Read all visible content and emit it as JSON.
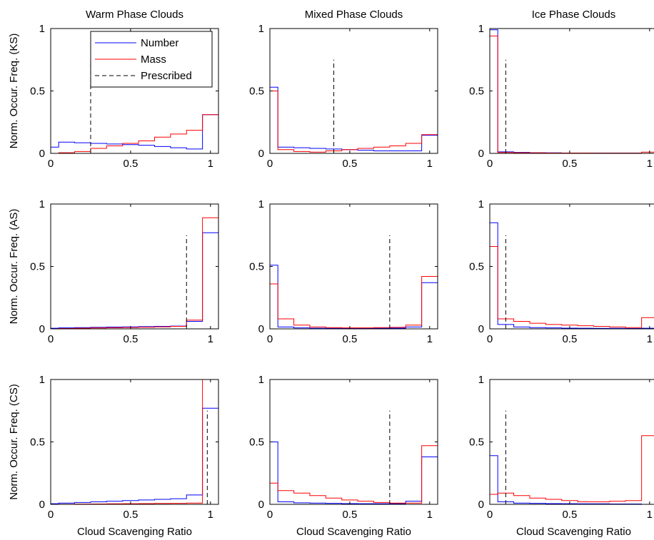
{
  "colors": {
    "number": "#0000ff",
    "mass": "#ff0000",
    "prescribed": "#000000",
    "axes": "#000000"
  },
  "chart_data": {
    "type": "line",
    "style": "stairs histogram",
    "xlabel": "Cloud Scavenging Ratio",
    "xlim": [
      0,
      1.05
    ],
    "ylim": [
      0,
      1
    ],
    "xticks": [
      0,
      0.5,
      1
    ],
    "xtick_labels": [
      "0",
      "0.5",
      "1"
    ],
    "yticks": [
      0,
      0.5,
      1
    ],
    "ytick_labels": [
      "0",
      "0.5",
      "1"
    ],
    "bin_edges": [
      0,
      0.05,
      0.15,
      0.25,
      0.35,
      0.45,
      0.55,
      0.65,
      0.75,
      0.85,
      0.95,
      1.05
    ],
    "column_titles": [
      "Warm Phase Clouds",
      "Mixed Phase Clouds",
      "Ice Phase Clouds"
    ],
    "row_labels": [
      "Norm. Occur. Freq. (KS)",
      "Norm. Occur. Freq. (AS)",
      "Norm. Occur. Freq. (CS)"
    ],
    "legend": {
      "placement": "top-right of first panel",
      "entries": [
        "Number",
        "Mass",
        "Prescribed"
      ]
    },
    "panels": [
      {
        "row": 0,
        "col": 0,
        "prescribed": 0.25,
        "series": [
          {
            "name": "Number",
            "values": [
              0.05,
              0.09,
              0.085,
              0.08,
              0.075,
              0.07,
              0.065,
              0.055,
              0.045,
              0.035,
              0.31
            ]
          },
          {
            "name": "Mass",
            "values": [
              0.0,
              0.005,
              0.015,
              0.04,
              0.06,
              0.08,
              0.1,
              0.13,
              0.155,
              0.185,
              0.31
            ]
          }
        ]
      },
      {
        "row": 0,
        "col": 1,
        "prescribed": 0.4,
        "series": [
          {
            "name": "Number",
            "values": [
              0.53,
              0.05,
              0.045,
              0.04,
              0.035,
              0.03,
              0.025,
              0.02,
              0.02,
              0.02,
              0.145
            ]
          },
          {
            "name": "Mass",
            "values": [
              0.5,
              0.03,
              0.015,
              0.01,
              0.02,
              0.03,
              0.04,
              0.05,
              0.06,
              0.08,
              0.15
            ]
          }
        ]
      },
      {
        "row": 0,
        "col": 2,
        "prescribed": 0.1,
        "series": [
          {
            "name": "Number",
            "values": [
              0.99,
              0.012,
              0.008,
              0.005,
              0.004,
              0.003,
              0.003,
              0.002,
              0.002,
              0.002,
              0.0
            ]
          },
          {
            "name": "Mass",
            "values": [
              0.94,
              0.007,
              0.005,
              0.004,
              0.003,
              0.003,
              0.003,
              0.002,
              0.002,
              0.002,
              0.01
            ]
          }
        ]
      },
      {
        "row": 1,
        "col": 0,
        "prescribed": 0.85,
        "series": [
          {
            "name": "Number",
            "values": [
              0.005,
              0.008,
              0.01,
              0.012,
              0.014,
              0.016,
              0.018,
              0.02,
              0.022,
              0.06,
              0.77
            ]
          },
          {
            "name": "Mass",
            "values": [
              0.0,
              0.003,
              0.005,
              0.007,
              0.009,
              0.011,
              0.013,
              0.016,
              0.02,
              0.07,
              0.89
            ]
          }
        ]
      },
      {
        "row": 1,
        "col": 1,
        "prescribed": 0.75,
        "series": [
          {
            "name": "Number",
            "values": [
              0.51,
              0.015,
              0.008,
              0.005,
              0.004,
              0.004,
              0.004,
              0.005,
              0.006,
              0.015,
              0.37
            ]
          },
          {
            "name": "Mass",
            "values": [
              0.36,
              0.08,
              0.03,
              0.015,
              0.01,
              0.008,
              0.008,
              0.01,
              0.012,
              0.03,
              0.42
            ]
          }
        ]
      },
      {
        "row": 1,
        "col": 2,
        "prescribed": 0.1,
        "series": [
          {
            "name": "Number",
            "values": [
              0.85,
              0.035,
              0.015,
              0.01,
              0.008,
              0.006,
              0.005,
              0.004,
              0.004,
              0.003,
              0.005
            ]
          },
          {
            "name": "Mass",
            "values": [
              0.66,
              0.08,
              0.06,
              0.045,
              0.035,
              0.03,
              0.025,
              0.02,
              0.015,
              0.01,
              0.09
            ]
          }
        ]
      },
      {
        "row": 2,
        "col": 0,
        "prescribed": 0.98,
        "series": [
          {
            "name": "Number",
            "values": [
              0.005,
              0.01,
              0.015,
              0.02,
              0.025,
              0.03,
              0.035,
              0.04,
              0.045,
              0.075,
              0.77
            ]
          },
          {
            "name": "Mass",
            "values": [
              0.0,
              0.001,
              0.002,
              0.003,
              0.004,
              0.005,
              0.006,
              0.007,
              0.008,
              0.01,
              1.0
            ]
          }
        ]
      },
      {
        "row": 2,
        "col": 1,
        "prescribed": 0.75,
        "series": [
          {
            "name": "Number",
            "values": [
              0.5,
              0.02,
              0.012,
              0.01,
              0.008,
              0.006,
              0.005,
              0.005,
              0.006,
              0.025,
              0.38
            ]
          },
          {
            "name": "Mass",
            "values": [
              0.17,
              0.11,
              0.09,
              0.07,
              0.05,
              0.035,
              0.025,
              0.015,
              0.01,
              0.01,
              0.47
            ]
          }
        ]
      },
      {
        "row": 2,
        "col": 2,
        "prescribed": 0.1,
        "series": [
          {
            "name": "Number",
            "values": [
              0.39,
              0.02,
              0.01,
              0.008,
              0.006,
              0.005,
              0.004,
              0.004,
              0.003,
              0.003,
              0.0
            ]
          },
          {
            "name": "Mass",
            "values": [
              0.08,
              0.09,
              0.07,
              0.05,
              0.04,
              0.03,
              0.02,
              0.02,
              0.025,
              0.03,
              0.55
            ]
          }
        ]
      }
    ]
  }
}
